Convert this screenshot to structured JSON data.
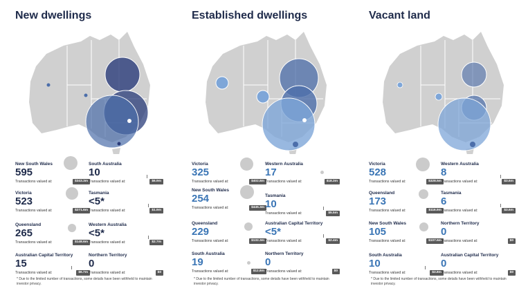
{
  "panels": [
    {
      "title": "New dwellings",
      "count_style": "dark",
      "stats_left": [
        {
          "state": "New South Wales",
          "count": "595",
          "caption": "Transactions valued at:",
          "value": "$343.3m",
          "bubble_share": 1.0
        },
        {
          "state": "Victoria",
          "count": "523",
          "caption": "Transactions valued at:",
          "value": "$271.6m",
          "bubble_share": 0.79
        },
        {
          "state": "Queensland",
          "count": "265",
          "caption": "Transactions valued at:",
          "value": "$148.6m",
          "bubble_share": 0.43
        },
        {
          "state": "Australian Capital Territory",
          "count": "15",
          "caption": "Transactions valued at:",
          "value": "$6.7m",
          "bubble_share": 0.02
        }
      ],
      "stats_right": [
        {
          "state": "South Australia",
          "count": "10",
          "caption": "Transactions valued at:",
          "value": "$6.9m",
          "bubble_share": 0.02
        },
        {
          "state": "Tasmania",
          "count": "<5*",
          "caption": "Transactions valued at:",
          "value": "$1.9m",
          "bubble_share": 0.0
        },
        {
          "state": "Western Australia",
          "count": "<5*",
          "caption": "Transactions valued at:",
          "value": "$2.7m",
          "bubble_share": 0.0
        },
        {
          "state": "Northern Territory",
          "count": "0",
          "caption": "Transactions valued at:",
          "value": "$0",
          "bubble_share": 0.0
        }
      ]
    },
    {
      "title": "Established dwellings",
      "count_style": "light",
      "stats_left": [
        {
          "state": "Victoria",
          "count": "325",
          "caption": "Transactions valued at:",
          "value": "$402.8m",
          "bubble_share": 1.0
        },
        {
          "state": "New South Wales",
          "count": "254",
          "caption": "Transactions valued at:",
          "value": "$445.3m",
          "bubble_share": 1.0
        },
        {
          "state": "Queensland",
          "count": "229",
          "caption": "Transactions valued at:",
          "value": "$132.3m",
          "bubble_share": 0.45
        },
        {
          "state": "South Australia",
          "count": "19",
          "caption": "Transactions valued at:",
          "value": "$12.8m",
          "bubble_share": 0.1
        }
      ],
      "stats_right": [
        {
          "state": "Western Australia",
          "count": "17",
          "caption": "Transactions valued at:",
          "value": "$18.3m",
          "bubble_share": 0.1
        },
        {
          "state": "Tasmania",
          "count": "10",
          "caption": "Transactions valued at:",
          "value": "$5.5m",
          "bubble_share": 0.04
        },
        {
          "state": "Australian Capital Territory",
          "count": "<5*",
          "caption": "Transactions valued at:",
          "value": "$2.4m",
          "bubble_share": 0.02
        },
        {
          "state": "Northern Territory",
          "count": "0",
          "caption": "Transactions valued at:",
          "value": "$0",
          "bubble_share": 0.0
        }
      ]
    },
    {
      "title": "Vacant land",
      "count_style": "light",
      "stats_left": [
        {
          "state": "Victoria",
          "count": "528",
          "caption": "Transactions valued at:",
          "value": "$328.5m",
          "bubble_share": 1.0
        },
        {
          "state": "Queensland",
          "count": "173",
          "caption": "Transactions valued at:",
          "value": "$116.9m",
          "bubble_share": 0.6
        },
        {
          "state": "New South Wales",
          "count": "105",
          "caption": "Transactions valued at:",
          "value": "$107.6m",
          "bubble_share": 0.55
        },
        {
          "state": "South Australia",
          "count": "10",
          "caption": "Transactions valued at:",
          "value": "$3.8m",
          "bubble_share": 0.06
        }
      ],
      "stats_right": [
        {
          "state": "Western Australia",
          "count": "8",
          "caption": "Transactions valued at:",
          "value": "$3.6m",
          "bubble_share": 0.05
        },
        {
          "state": "Tasmania",
          "count": "6",
          "caption": "Transactions valued at:",
          "value": "$3.6m",
          "bubble_share": 0.05
        },
        {
          "state": "Northern Territory",
          "count": "0",
          "caption": "Transactions valued at:",
          "value": "$0",
          "bubble_share": 0.0
        },
        {
          "state": "Australian Capital Territory",
          "count": "0",
          "caption": "Transactions valued at:",
          "value": "$0",
          "bubble_share": 0.0
        }
      ]
    }
  ],
  "footnote": "* Due to the limited number of transactions, some details have been withheld to maintain investor privacy.",
  "colors": {
    "land": "#d0d0d0",
    "border": "#ffffff",
    "dark_bubble": "#2a3c7a",
    "mid_bubble": "#4c6eaa",
    "light_bubble": "#7ea6d8",
    "title": "#1e2a4a"
  }
}
